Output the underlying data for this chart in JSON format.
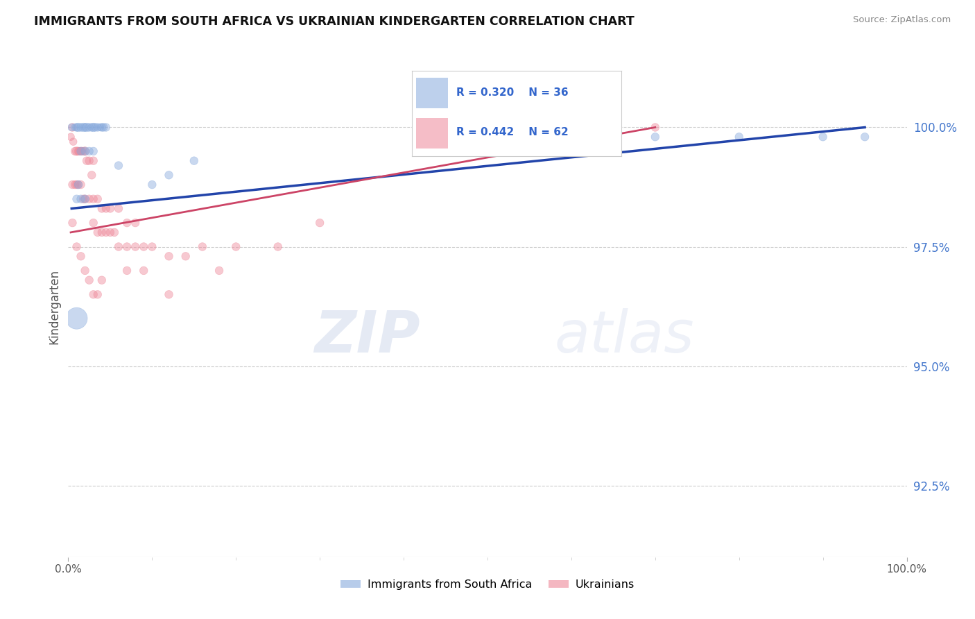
{
  "title": "IMMIGRANTS FROM SOUTH AFRICA VS UKRAINIAN KINDERGARTEN CORRELATION CHART",
  "source": "Source: ZipAtlas.com",
  "ylabel": "Kindergarten",
  "legend_blue_label": "Immigrants from South Africa",
  "legend_pink_label": "Ukrainians",
  "r_blue": 0.32,
  "n_blue": 36,
  "r_pink": 0.442,
  "n_pink": 62,
  "blue_color": "#88AADD",
  "pink_color": "#EE8899",
  "trend_blue": "#2244AA",
  "trend_pink": "#CC4466",
  "background": "#FFFFFF",
  "watermark": "ZIPatlas",
  "xlim": [
    0,
    100
  ],
  "ylim": [
    91.0,
    101.5
  ],
  "yticks": [
    92.5,
    95.0,
    97.5,
    100.0
  ],
  "ytick_labels": [
    "92.5%",
    "95.0%",
    "97.5%",
    "100.0%"
  ],
  "xtick_labels": [
    "0.0%",
    "100.0%"
  ],
  "blue_x": [
    0.4,
    0.8,
    1.0,
    1.2,
    1.5,
    1.8,
    2.0,
    2.2,
    2.5,
    2.8,
    3.0,
    3.2,
    3.5,
    3.8,
    4.0,
    4.2,
    4.5,
    1.5,
    2.0,
    2.5,
    3.0,
    6.0,
    10.0,
    12.0,
    15.0,
    1.0,
    1.2,
    1.5,
    2.0,
    50.0,
    60.0,
    70.0,
    80.0,
    90.0,
    95.0,
    1.0
  ],
  "blue_y": [
    100.0,
    100.0,
    100.0,
    100.0,
    100.0,
    100.0,
    100.0,
    100.0,
    100.0,
    100.0,
    100.0,
    100.0,
    100.0,
    100.0,
    100.0,
    100.0,
    100.0,
    99.5,
    99.5,
    99.5,
    99.5,
    99.2,
    98.8,
    99.0,
    99.3,
    98.5,
    98.8,
    98.5,
    98.5,
    99.8,
    99.8,
    99.8,
    99.8,
    99.8,
    99.8,
    96.0
  ],
  "blue_sizes": [
    60,
    60,
    70,
    80,
    70,
    80,
    70,
    80,
    70,
    70,
    80,
    70,
    70,
    60,
    70,
    70,
    70,
    70,
    70,
    70,
    70,
    70,
    70,
    70,
    70,
    70,
    70,
    70,
    70,
    70,
    70,
    70,
    70,
    70,
    70,
    500
  ],
  "pink_x": [
    0.3,
    0.5,
    0.6,
    0.8,
    1.0,
    1.2,
    1.3,
    1.5,
    1.6,
    1.8,
    2.0,
    2.2,
    2.5,
    2.8,
    3.0,
    0.5,
    0.8,
    1.0,
    1.2,
    1.5,
    1.8,
    2.0,
    2.5,
    3.0,
    3.5,
    4.0,
    4.5,
    5.0,
    6.0,
    7.0,
    8.0,
    3.0,
    3.5,
    4.0,
    4.5,
    5.0,
    5.5,
    6.0,
    7.0,
    8.0,
    9.0,
    10.0,
    12.0,
    14.0,
    16.0,
    18.0,
    20.0,
    25.0,
    0.5,
    1.0,
    1.5,
    2.0,
    2.5,
    3.0,
    3.5,
    4.0,
    7.0,
    9.0,
    12.0,
    30.0,
    50.0,
    70.0
  ],
  "pink_y": [
    99.8,
    100.0,
    99.7,
    99.5,
    99.5,
    99.5,
    99.5,
    99.5,
    99.5,
    99.5,
    99.5,
    99.3,
    99.3,
    99.0,
    99.3,
    98.8,
    98.8,
    98.8,
    98.8,
    98.8,
    98.5,
    98.5,
    98.5,
    98.5,
    98.5,
    98.3,
    98.3,
    98.3,
    98.3,
    98.0,
    98.0,
    98.0,
    97.8,
    97.8,
    97.8,
    97.8,
    97.8,
    97.5,
    97.5,
    97.5,
    97.5,
    97.5,
    97.3,
    97.3,
    97.5,
    97.0,
    97.5,
    97.5,
    98.0,
    97.5,
    97.3,
    97.0,
    96.8,
    96.5,
    96.5,
    96.8,
    97.0,
    97.0,
    96.5,
    98.0,
    100.0,
    100.0
  ],
  "pink_sizes": [
    60,
    70,
    60,
    70,
    80,
    70,
    70,
    70,
    70,
    70,
    80,
    70,
    70,
    70,
    70,
    70,
    70,
    70,
    70,
    70,
    70,
    70,
    70,
    70,
    70,
    70,
    70,
    70,
    70,
    70,
    70,
    70,
    70,
    70,
    70,
    70,
    70,
    70,
    70,
    70,
    70,
    70,
    70,
    70,
    70,
    70,
    70,
    70,
    70,
    70,
    70,
    70,
    70,
    70,
    70,
    70,
    70,
    70,
    70,
    70,
    70,
    70
  ],
  "blue_trendline_x": [
    0.4,
    95.0
  ],
  "blue_trendline_y": [
    98.3,
    100.0
  ],
  "pink_trendline_x": [
    0.3,
    70.0
  ],
  "pink_trendline_y": [
    97.8,
    100.0
  ]
}
